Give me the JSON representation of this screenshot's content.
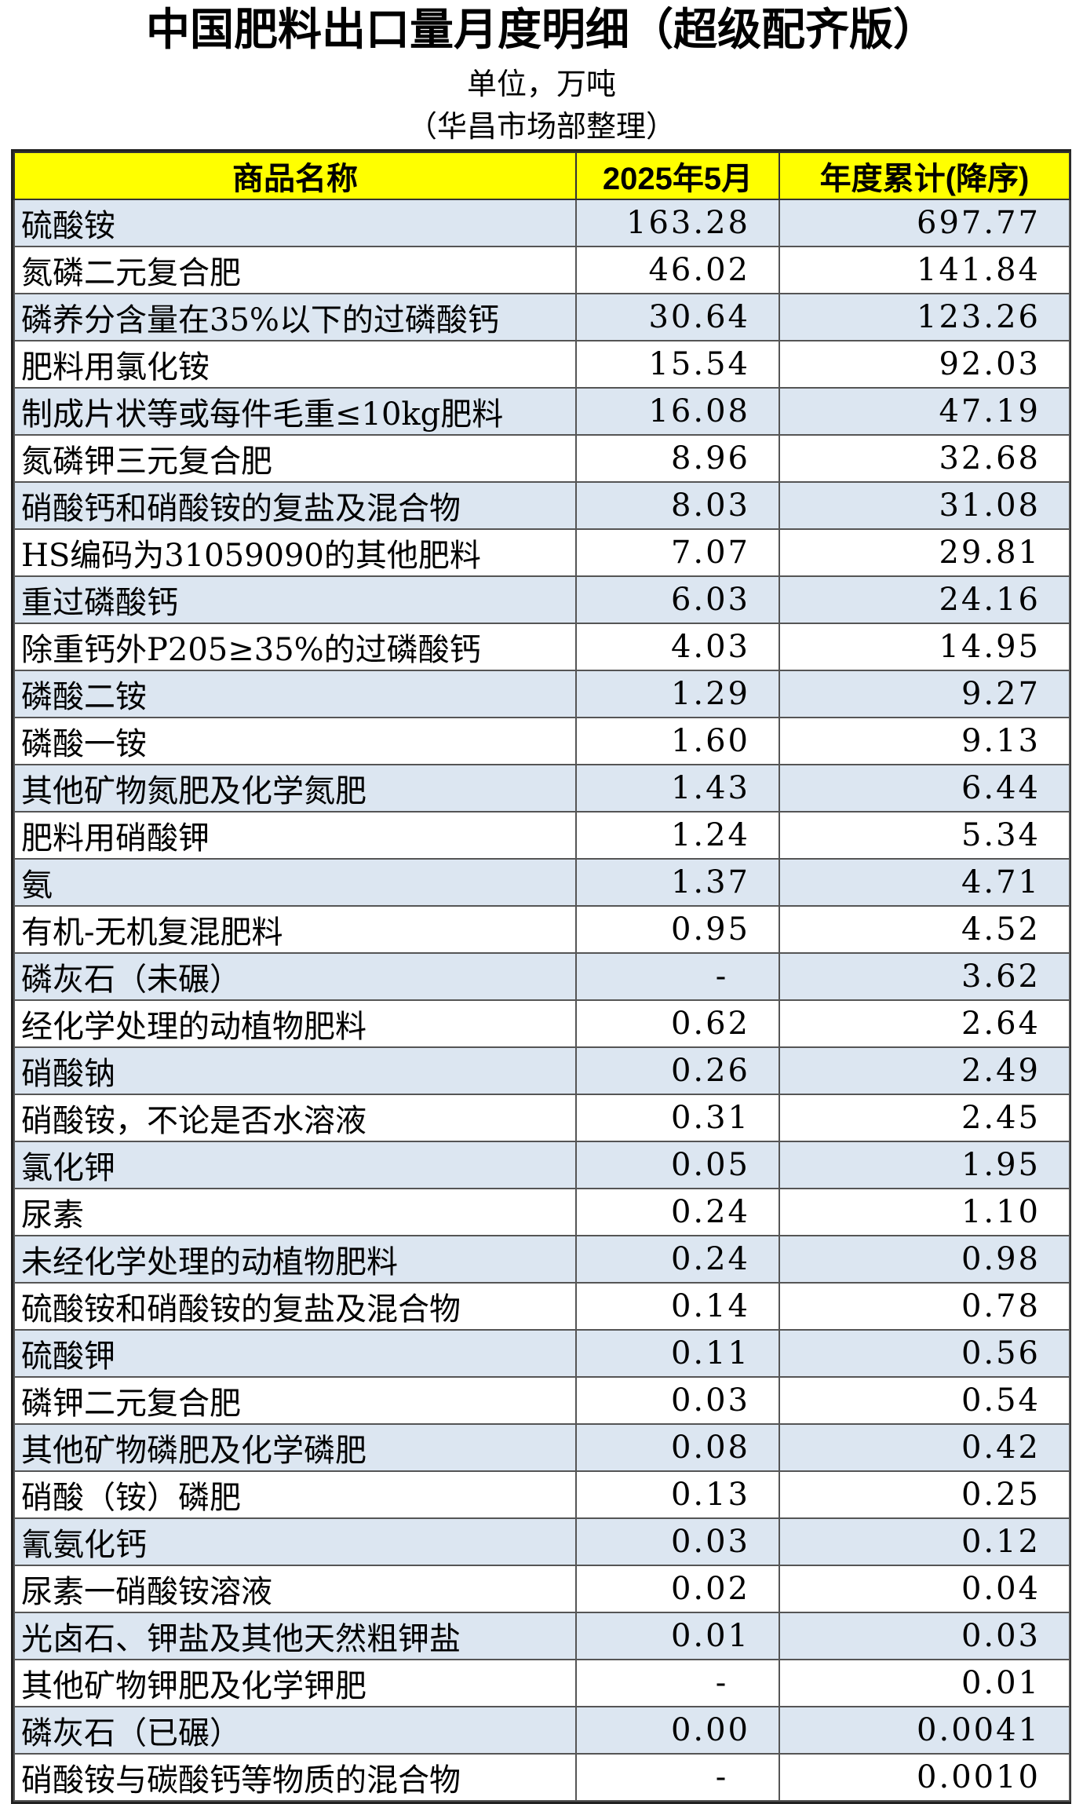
{
  "title": "中国肥料出口量月度明细（超级配齐版）",
  "unit": "单位，万吨",
  "source": "（华昌市场部整理）",
  "table": {
    "headers": [
      "商品名称",
      "2025年5月",
      "年度累计(降序)"
    ],
    "rows": [
      {
        "name": "硫酸铵",
        "month": "163.28",
        "ytd": "697.77"
      },
      {
        "name": "氮磷二元复合肥",
        "month": "46.02",
        "ytd": "141.84"
      },
      {
        "name": "磷养分含量在35%以下的过磷酸钙",
        "month": "30.64",
        "ytd": "123.26"
      },
      {
        "name": "肥料用氯化铵",
        "month": "15.54",
        "ytd": "92.03"
      },
      {
        "name": "制成片状等或每件毛重≤10kg肥料",
        "month": "16.08",
        "ytd": "47.19"
      },
      {
        "name": "氮磷钾三元复合肥",
        "month": "8.96",
        "ytd": "32.68"
      },
      {
        "name": "硝酸钙和硝酸铵的复盐及混合物",
        "month": "8.03",
        "ytd": "31.08"
      },
      {
        "name": "HS编码为31059090的其他肥料",
        "month": "7.07",
        "ytd": "29.81"
      },
      {
        "name": "重过磷酸钙",
        "month": "6.03",
        "ytd": "24.16"
      },
      {
        "name": "除重钙外P205≥35%的过磷酸钙",
        "month": "4.03",
        "ytd": "14.95"
      },
      {
        "name": "磷酸二铵",
        "month": "1.29",
        "ytd": "9.27"
      },
      {
        "name": "磷酸一铵",
        "month": "1.60",
        "ytd": "9.13"
      },
      {
        "name": "其他矿物氮肥及化学氮肥",
        "month": "1.43",
        "ytd": "6.44"
      },
      {
        "name": "肥料用硝酸钾",
        "month": "1.24",
        "ytd": "5.34"
      },
      {
        "name": "氨",
        "month": "1.37",
        "ytd": "4.71"
      },
      {
        "name": "有机-无机复混肥料",
        "month": "0.95",
        "ytd": "4.52"
      },
      {
        "name": "磷灰石（未碾）",
        "month": "-",
        "ytd": "3.62"
      },
      {
        "name": "经化学处理的动植物肥料",
        "month": "0.62",
        "ytd": "2.64"
      },
      {
        "name": "硝酸钠",
        "month": "0.26",
        "ytd": "2.49"
      },
      {
        "name": "硝酸铵，不论是否水溶液",
        "month": "0.31",
        "ytd": "2.45"
      },
      {
        "name": "氯化钾",
        "month": "0.05",
        "ytd": "1.95"
      },
      {
        "name": "尿素",
        "month": "0.24",
        "ytd": "1.10"
      },
      {
        "name": "未经化学处理的动植物肥料",
        "month": "0.24",
        "ytd": "0.98"
      },
      {
        "name": "硫酸铵和硝酸铵的复盐及混合物",
        "month": "0.14",
        "ytd": "0.78"
      },
      {
        "name": "硫酸钾",
        "month": "0.11",
        "ytd": "0.56"
      },
      {
        "name": "磷钾二元复合肥",
        "month": "0.03",
        "ytd": "0.54"
      },
      {
        "name": "其他矿物磷肥及化学磷肥",
        "month": "0.08",
        "ytd": "0.42"
      },
      {
        "name": "硝酸（铵）磷肥",
        "month": "0.13",
        "ytd": "0.25"
      },
      {
        "name": "氰氨化钙",
        "month": "0.03",
        "ytd": "0.12"
      },
      {
        "name": "尿素一硝酸铵溶液",
        "month": "0.02",
        "ytd": "0.04"
      },
      {
        "name": "光卤石、钾盐及其他天然粗钾盐",
        "month": "0.01",
        "ytd": "0.03"
      },
      {
        "name": "其他矿物钾肥及化学钾肥",
        "month": "-",
        "ytd": "0.01"
      },
      {
        "name": "磷灰石（已碾）",
        "month": "0.00",
        "ytd": "0.0041"
      },
      {
        "name": "硝酸铵与碳酸钙等物质的混合物",
        "month": "-",
        "ytd": "0.0010"
      }
    ]
  },
  "colors": {
    "header_bg": "#ffff00",
    "stripe_bg": "#dce6f1",
    "plain_bg": "#ffffff"
  }
}
